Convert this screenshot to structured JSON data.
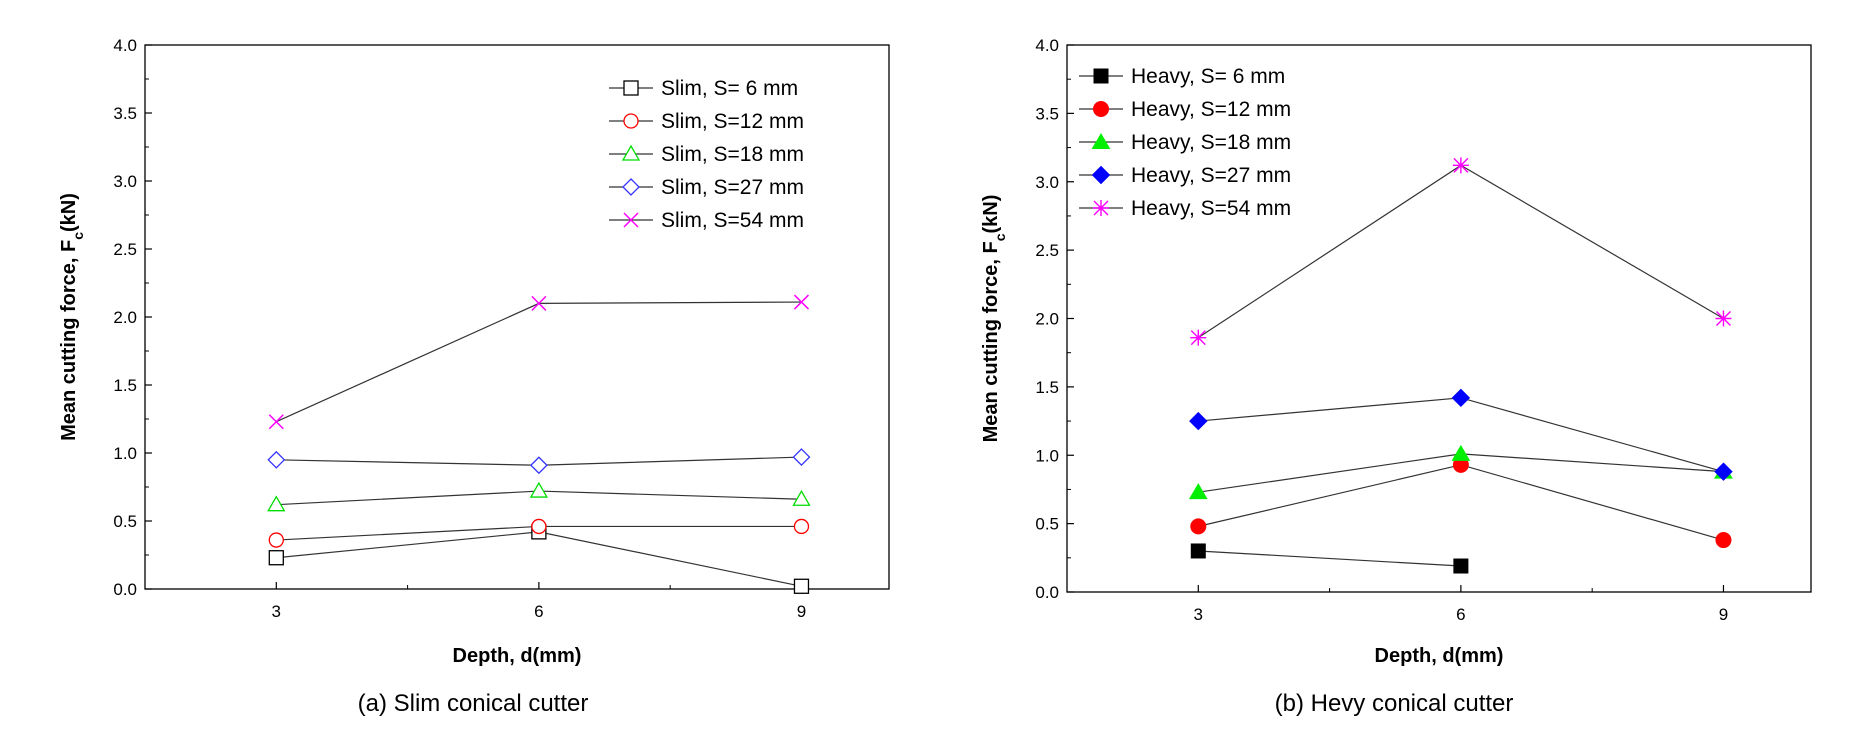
{
  "chart_data": [
    {
      "type": "line",
      "caption": "(a)  Slim  conical  cutter",
      "xlabel": "Depth, d(mm)",
      "ylabel_main": "Mean cutting force, F",
      "ylabel_sub": "c",
      "ylabel_tail": "(kN)",
      "x_ticks": [
        "3",
        "6",
        "9"
      ],
      "y_ticks": [
        "0.0",
        "0.5",
        "1.0",
        "1.5",
        "2.0",
        "2.5",
        "3.0",
        "3.5",
        "4.0"
      ],
      "xlim": [
        1.5,
        10.0
      ],
      "ylim": [
        0,
        4
      ],
      "legend_position": "top-right",
      "series": [
        {
          "name": "Slim, S=  6 mm",
          "marker": "square-open",
          "color": "#000000",
          "x": [
            3,
            6,
            9
          ],
          "y": [
            0.23,
            0.42,
            0.02
          ]
        },
        {
          "name": "Slim, S=12 mm",
          "marker": "circle-open",
          "color": "#ff0000",
          "x": [
            3,
            6,
            9
          ],
          "y": [
            0.36,
            0.46,
            0.46
          ]
        },
        {
          "name": "Slim, S=18 mm",
          "marker": "triangle-open",
          "color": "#00dd00",
          "x": [
            3,
            6,
            9
          ],
          "y": [
            0.62,
            0.72,
            0.66
          ]
        },
        {
          "name": "Slim, S=27 mm",
          "marker": "diamond-open",
          "color": "#3333ff",
          "x": [
            3,
            6,
            9
          ],
          "y": [
            0.95,
            0.91,
            0.97
          ]
        },
        {
          "name": "Slim, S=54 mm",
          "marker": "x",
          "color": "#ff00ff",
          "x": [
            3,
            6,
            9
          ],
          "y": [
            1.23,
            2.1,
            2.11
          ]
        }
      ]
    },
    {
      "type": "line",
      "caption": "(b)  Hevy  conical  cutter",
      "xlabel": "Depth, d(mm)",
      "ylabel_main": "Mean cutting force, F",
      "ylabel_sub": "c",
      "ylabel_tail": "(kN)",
      "x_ticks": [
        "3",
        "6",
        "9"
      ],
      "y_ticks": [
        "0.0",
        "0.5",
        "1.0",
        "1.5",
        "2.0",
        "2.5",
        "3.0",
        "3.5",
        "4.0"
      ],
      "xlim": [
        1.5,
        10.0
      ],
      "ylim": [
        0,
        4
      ],
      "legend_position": "top-left",
      "series": [
        {
          "name": "Heavy, S=  6 mm",
          "marker": "square-filled",
          "color": "#000000",
          "x": [
            3,
            6
          ],
          "y": [
            0.3,
            0.19
          ]
        },
        {
          "name": "Heavy, S=12 mm",
          "marker": "circle-filled",
          "color": "#ff0000",
          "x": [
            3,
            6,
            9
          ],
          "y": [
            0.48,
            0.93,
            0.38
          ]
        },
        {
          "name": "Heavy, S=18 mm",
          "marker": "triangle-filled",
          "color": "#00ee00",
          "x": [
            3,
            6,
            9
          ],
          "y": [
            0.73,
            1.01,
            0.88
          ]
        },
        {
          "name": "Heavy, S=27 mm",
          "marker": "diamond-filled",
          "color": "#0000ff",
          "x": [
            3,
            6,
            9
          ],
          "y": [
            1.25,
            1.42,
            0.88
          ]
        },
        {
          "name": "Heavy, S=54 mm",
          "marker": "asterisk",
          "color": "#ff00ff",
          "x": [
            3,
            6,
            9
          ],
          "y": [
            1.86,
            3.12,
            2.0
          ]
        }
      ]
    }
  ]
}
